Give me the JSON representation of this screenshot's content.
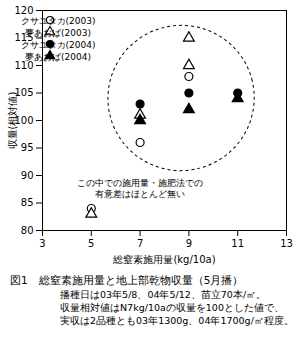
{
  "chart_data": {
    "type": "scatter",
    "title": "図1　総窒素施用量と地上部乾物収量（5月播）",
    "notes": [
      "播種日は03年5/8、04年5/12、苗立70本/㎡。",
      "収量相対値はN7kg/10aの収量を100とした値で、",
      "実収は2品種とも03年1300g、04年1700g/㎡程度。"
    ],
    "annotation": "この中での施用量・施肥法での\n有意差はほとんど無い",
    "x_label": "総窒素施用量(kg/10a)",
    "y_label": "収量(相対値)",
    "xlim": [
      3,
      13
    ],
    "xticks": [
      3,
      5,
      7,
      9,
      11,
      13
    ],
    "ylim": [
      80,
      120
    ],
    "yticks": [
      80,
      85,
      90,
      95,
      100,
      105,
      110,
      115,
      120
    ],
    "legend": "top-left",
    "grid": false,
    "series": [
      {
        "name": "クサユタカ(2003)",
        "color": "#000000",
        "marker": "circle-open",
        "x": [
          5,
          7,
          9
        ],
        "values": [
          84,
          96,
          108
        ]
      },
      {
        "name": "夢あおば(2003)",
        "color": "#000000",
        "marker": "triangle-open",
        "x": [
          5,
          7,
          9,
          9
        ],
        "values": [
          83,
          101,
          110,
          115
        ]
      },
      {
        "name": "クサユタカ(2004)",
        "color": "#000000",
        "marker": "circle",
        "x": [
          7,
          9,
          11
        ],
        "values": [
          103,
          105,
          105
        ]
      },
      {
        "name": "夢あおば(2004)",
        "color": "#000000",
        "marker": "triangle",
        "x": [
          7,
          9,
          11
        ],
        "values": [
          100,
          102,
          104
        ]
      }
    ]
  }
}
